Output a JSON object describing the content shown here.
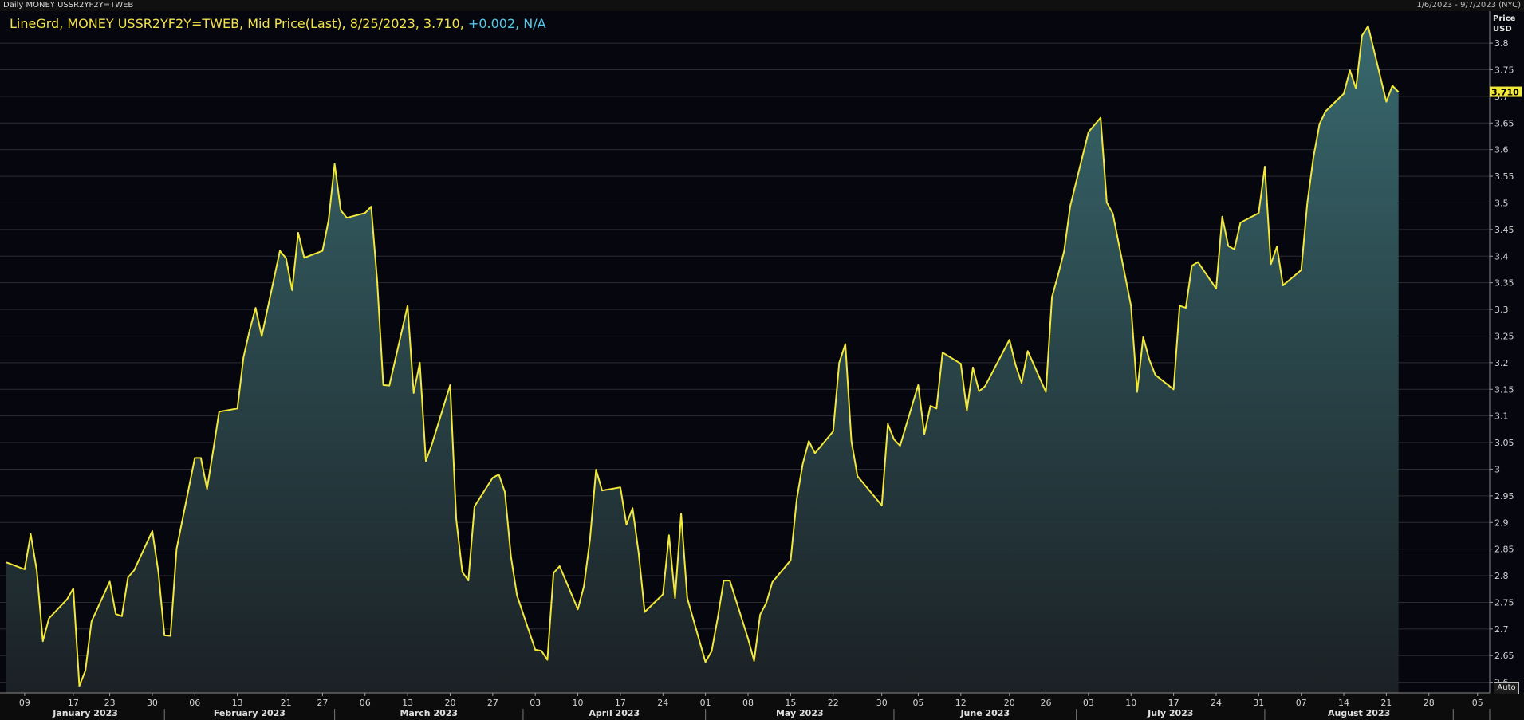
{
  "window": {
    "title": "Daily MONEY USSR2YF2Y=TWEB",
    "date_range": "1/6/2023 - 9/7/2023 (NYC)"
  },
  "legend": {
    "main_text": "LineGrd, MONEY USSR2YF2Y=TWEB, Mid Price(Last), 8/25/2023, 3.710,",
    "change_text": "+0.002, N/A"
  },
  "axis": {
    "y_title_line1": "Price",
    "y_title_line2": "USD",
    "last_value_tag": "3.710",
    "auto_button": "Auto"
  },
  "colors": {
    "background": "#06060e",
    "line": "#f2e83a",
    "fill": "#3a6d72",
    "grid": "#2c2c34",
    "legend_main": "#f2e24a",
    "legend_change": "#56c8ea",
    "last_tag_bg": "#f2e83a"
  },
  "chart_data": {
    "type": "area",
    "ylim": [
      2.58,
      3.86
    ],
    "y_ticks": [
      2.6,
      2.65,
      2.7,
      2.75,
      2.8,
      2.85,
      2.9,
      2.95,
      3,
      3.05,
      3.1,
      3.15,
      3.2,
      3.25,
      3.3,
      3.35,
      3.4,
      3.45,
      3.5,
      3.55,
      3.6,
      3.65,
      3.7,
      3.75,
      3.8
    ],
    "y_tick_labels": [
      "2.6",
      "2.65",
      "2.7",
      "2.75",
      "2.8",
      "2.85",
      "2.9",
      "2.95",
      "3",
      "3.05",
      "3.1",
      "3.15",
      "3.2",
      "3.25",
      "3.3",
      "3.35",
      "3.4",
      "3.45",
      "3.5",
      "3.55",
      "3.6",
      "3.65",
      "3.7",
      "3.75",
      "3.8"
    ],
    "x_start": "2023-01-06",
    "x_end": "2023-09-07",
    "x_ticks": [
      {
        "date": "2023-01-09",
        "label": "09"
      },
      {
        "date": "2023-01-17",
        "label": "17"
      },
      {
        "date": "2023-01-23",
        "label": "23"
      },
      {
        "date": "2023-01-30",
        "label": "30"
      },
      {
        "date": "2023-02-06",
        "label": "06"
      },
      {
        "date": "2023-02-13",
        "label": "13"
      },
      {
        "date": "2023-02-21",
        "label": "21"
      },
      {
        "date": "2023-02-27",
        "label": "27"
      },
      {
        "date": "2023-03-06",
        "label": "06"
      },
      {
        "date": "2023-03-13",
        "label": "13"
      },
      {
        "date": "2023-03-20",
        "label": "20"
      },
      {
        "date": "2023-03-27",
        "label": "27"
      },
      {
        "date": "2023-04-03",
        "label": "03"
      },
      {
        "date": "2023-04-10",
        "label": "10"
      },
      {
        "date": "2023-04-17",
        "label": "17"
      },
      {
        "date": "2023-04-24",
        "label": "24"
      },
      {
        "date": "2023-05-01",
        "label": "01"
      },
      {
        "date": "2023-05-08",
        "label": "08"
      },
      {
        "date": "2023-05-15",
        "label": "15"
      },
      {
        "date": "2023-05-22",
        "label": "22"
      },
      {
        "date": "2023-05-30",
        "label": "30"
      },
      {
        "date": "2023-06-05",
        "label": "05"
      },
      {
        "date": "2023-06-12",
        "label": "12"
      },
      {
        "date": "2023-06-20",
        "label": "20"
      },
      {
        "date": "2023-06-26",
        "label": "26"
      },
      {
        "date": "2023-07-03",
        "label": "03"
      },
      {
        "date": "2023-07-10",
        "label": "10"
      },
      {
        "date": "2023-07-17",
        "label": "17"
      },
      {
        "date": "2023-07-24",
        "label": "24"
      },
      {
        "date": "2023-07-31",
        "label": "31"
      },
      {
        "date": "2023-08-07",
        "label": "07"
      },
      {
        "date": "2023-08-14",
        "label": "14"
      },
      {
        "date": "2023-08-21",
        "label": "21"
      },
      {
        "date": "2023-08-28",
        "label": "28"
      },
      {
        "date": "2023-09-05",
        "label": "05"
      }
    ],
    "months": [
      {
        "label": "January 2023",
        "start": "2023-01-06",
        "end": "2023-02-01"
      },
      {
        "label": "February 2023",
        "start": "2023-02-01",
        "end": "2023-03-01"
      },
      {
        "label": "March 2023",
        "start": "2023-03-01",
        "end": "2023-04-01"
      },
      {
        "label": "April 2023",
        "start": "2023-04-01",
        "end": "2023-05-01"
      },
      {
        "label": "May 2023",
        "start": "2023-05-01",
        "end": "2023-06-01"
      },
      {
        "label": "June 2023",
        "start": "2023-06-01",
        "end": "2023-07-01"
      },
      {
        "label": "July 2023",
        "start": "2023-07-01",
        "end": "2023-08-01"
      },
      {
        "label": "August 2023",
        "start": "2023-08-01",
        "end": "2023-09-01"
      },
      {
        "label": "",
        "start": "2023-09-01",
        "end": "2023-09-07"
      }
    ],
    "series": [
      {
        "values": [
          [
            "2023-01-06",
            2.825
          ],
          [
            "2023-01-09",
            2.812
          ],
          [
            "2023-01-10",
            2.878
          ],
          [
            "2023-01-11",
            2.81
          ],
          [
            "2023-01-12",
            2.677
          ],
          [
            "2023-01-13",
            2.72
          ],
          [
            "2023-01-16",
            2.756
          ],
          [
            "2023-01-17",
            2.776
          ],
          [
            "2023-01-18",
            2.593
          ],
          [
            "2023-01-19",
            2.622
          ],
          [
            "2023-01-20",
            2.714
          ],
          [
            "2023-01-23",
            2.789
          ],
          [
            "2023-01-24",
            2.728
          ],
          [
            "2023-01-25",
            2.724
          ],
          [
            "2023-01-26",
            2.797
          ],
          [
            "2023-01-27",
            2.81
          ],
          [
            "2023-01-30",
            2.884
          ],
          [
            "2023-01-31",
            2.807
          ],
          [
            "2023-02-01",
            2.688
          ],
          [
            "2023-02-02",
            2.687
          ],
          [
            "2023-02-03",
            2.85
          ],
          [
            "2023-02-06",
            3.021
          ],
          [
            "2023-02-07",
            3.021
          ],
          [
            "2023-02-08",
            2.963
          ],
          [
            "2023-02-09",
            3.034
          ],
          [
            "2023-02-10",
            3.108
          ],
          [
            "2023-02-13",
            3.114
          ],
          [
            "2023-02-14",
            3.21
          ],
          [
            "2023-02-15",
            3.26
          ],
          [
            "2023-02-16",
            3.303
          ],
          [
            "2023-02-17",
            3.25
          ],
          [
            "2023-02-20",
            3.41
          ],
          [
            "2023-02-21",
            3.396
          ],
          [
            "2023-02-22",
            3.336
          ],
          [
            "2023-02-23",
            3.444
          ],
          [
            "2023-02-24",
            3.397
          ],
          [
            "2023-02-27",
            3.41
          ],
          [
            "2023-02-28",
            3.467
          ],
          [
            "2023-03-01",
            3.573
          ],
          [
            "2023-03-02",
            3.486
          ],
          [
            "2023-03-03",
            3.472
          ],
          [
            "2023-03-06",
            3.481
          ],
          [
            "2023-03-07",
            3.493
          ],
          [
            "2023-03-08",
            3.353
          ],
          [
            "2023-03-09",
            3.158
          ],
          [
            "2023-03-10",
            3.157
          ],
          [
            "2023-03-13",
            3.307
          ],
          [
            "2023-03-14",
            3.143
          ],
          [
            "2023-03-15",
            3.2
          ],
          [
            "2023-03-16",
            3.015
          ],
          [
            "2023-03-17",
            3.047
          ],
          [
            "2023-03-20",
            3.158
          ],
          [
            "2023-03-21",
            2.906
          ],
          [
            "2023-03-22",
            2.807
          ],
          [
            "2023-03-23",
            2.791
          ],
          [
            "2023-03-24",
            2.93
          ],
          [
            "2023-03-27",
            2.984
          ],
          [
            "2023-03-28",
            2.99
          ],
          [
            "2023-03-29",
            2.957
          ],
          [
            "2023-03-30",
            2.836
          ],
          [
            "2023-03-31",
            2.763
          ],
          [
            "2023-04-03",
            2.661
          ],
          [
            "2023-04-04",
            2.659
          ],
          [
            "2023-04-05",
            2.642
          ],
          [
            "2023-04-06",
            2.805
          ],
          [
            "2023-04-07",
            2.818
          ],
          [
            "2023-04-10",
            2.737
          ],
          [
            "2023-04-11",
            2.78
          ],
          [
            "2023-04-12",
            2.868
          ],
          [
            "2023-04-13",
            2.999
          ],
          [
            "2023-04-14",
            2.96
          ],
          [
            "2023-04-17",
            2.966
          ],
          [
            "2023-04-18",
            2.896
          ],
          [
            "2023-04-19",
            2.927
          ],
          [
            "2023-04-20",
            2.843
          ],
          [
            "2023-04-21",
            2.732
          ],
          [
            "2023-04-24",
            2.765
          ],
          [
            "2023-04-25",
            2.876
          ],
          [
            "2023-04-26",
            2.758
          ],
          [
            "2023-04-27",
            2.917
          ],
          [
            "2023-04-28",
            2.758
          ],
          [
            "2023-05-01",
            2.638
          ],
          [
            "2023-05-02",
            2.658
          ],
          [
            "2023-05-03",
            2.72
          ],
          [
            "2023-05-04",
            2.791
          ],
          [
            "2023-05-05",
            2.791
          ],
          [
            "2023-05-08",
            2.682
          ],
          [
            "2023-05-09",
            2.64
          ],
          [
            "2023-05-10",
            2.727
          ],
          [
            "2023-05-11",
            2.749
          ],
          [
            "2023-05-12",
            2.788
          ],
          [
            "2023-05-15",
            2.829
          ],
          [
            "2023-05-16",
            2.943
          ],
          [
            "2023-05-17",
            3.01
          ],
          [
            "2023-05-18",
            3.053
          ],
          [
            "2023-05-19",
            3.03
          ],
          [
            "2023-05-22",
            3.071
          ],
          [
            "2023-05-23",
            3.2
          ],
          [
            "2023-05-24",
            3.235
          ],
          [
            "2023-05-25",
            3.053
          ],
          [
            "2023-05-26",
            2.987
          ],
          [
            "2023-05-30",
            2.932
          ],
          [
            "2023-05-31",
            3.085
          ],
          [
            "2023-06-01",
            3.056
          ],
          [
            "2023-06-02",
            3.044
          ],
          [
            "2023-06-05",
            3.158
          ],
          [
            "2023-06-06",
            3.066
          ],
          [
            "2023-06-07",
            3.119
          ],
          [
            "2023-06-08",
            3.114
          ],
          [
            "2023-06-09",
            3.219
          ],
          [
            "2023-06-12",
            3.198
          ],
          [
            "2023-06-13",
            3.11
          ],
          [
            "2023-06-14",
            3.191
          ],
          [
            "2023-06-15",
            3.146
          ],
          [
            "2023-06-16",
            3.156
          ],
          [
            "2023-06-20",
            3.243
          ],
          [
            "2023-06-21",
            3.196
          ],
          [
            "2023-06-22",
            3.162
          ],
          [
            "2023-06-23",
            3.222
          ],
          [
            "2023-06-26",
            3.145
          ],
          [
            "2023-06-27",
            3.323
          ],
          [
            "2023-06-28",
            3.365
          ],
          [
            "2023-06-29",
            3.41
          ],
          [
            "2023-06-30",
            3.494
          ],
          [
            "2023-07-03",
            3.633
          ],
          [
            "2023-07-05",
            3.66
          ],
          [
            "2023-07-06",
            3.501
          ],
          [
            "2023-07-07",
            3.48
          ],
          [
            "2023-07-10",
            3.307
          ],
          [
            "2023-07-11",
            3.145
          ],
          [
            "2023-07-12",
            3.248
          ],
          [
            "2023-07-13",
            3.206
          ],
          [
            "2023-07-14",
            3.177
          ],
          [
            "2023-07-17",
            3.15
          ],
          [
            "2023-07-18",
            3.307
          ],
          [
            "2023-07-19",
            3.303
          ],
          [
            "2023-07-20",
            3.382
          ],
          [
            "2023-07-21",
            3.389
          ],
          [
            "2023-07-24",
            3.339
          ],
          [
            "2023-07-25",
            3.474
          ],
          [
            "2023-07-26",
            3.419
          ],
          [
            "2023-07-27",
            3.413
          ],
          [
            "2023-07-28",
            3.463
          ],
          [
            "2023-07-31",
            3.481
          ],
          [
            "2023-08-01",
            3.568
          ],
          [
            "2023-08-02",
            3.385
          ],
          [
            "2023-08-03",
            3.418
          ],
          [
            "2023-08-04",
            3.345
          ],
          [
            "2023-08-07",
            3.374
          ],
          [
            "2023-08-08",
            3.5
          ],
          [
            "2023-08-09",
            3.585
          ],
          [
            "2023-08-10",
            3.648
          ],
          [
            "2023-08-11",
            3.672
          ],
          [
            "2023-08-14",
            3.705
          ],
          [
            "2023-08-15",
            3.749
          ],
          [
            "2023-08-16",
            3.715
          ],
          [
            "2023-08-17",
            3.814
          ],
          [
            "2023-08-18",
            3.832
          ],
          [
            "2023-08-21",
            3.69
          ],
          [
            "2023-08-22",
            3.72
          ],
          [
            "2023-08-23",
            3.708
          ]
        ]
      }
    ]
  }
}
